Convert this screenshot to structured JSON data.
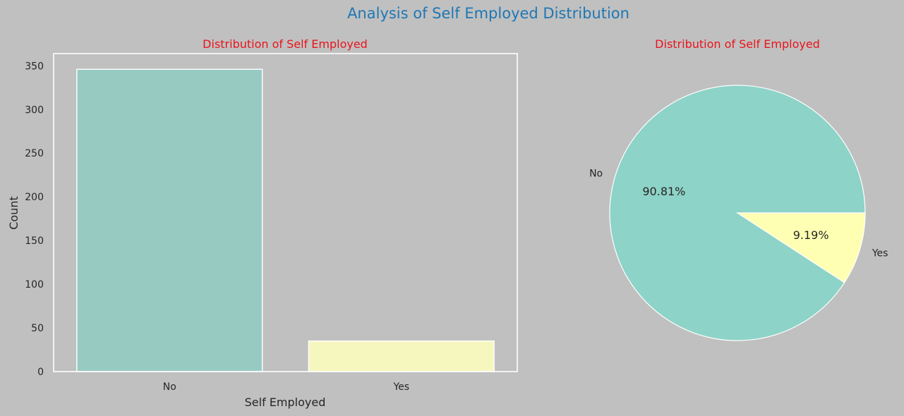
{
  "suptitle": "Analysis of Self Employed Distribution",
  "colors": {
    "background": "#c0c0c0",
    "suptitle": "#1f77b4",
    "subtitle": "#e8141b",
    "text": "#262626",
    "frame": "#ffffff",
    "series": [
      "#8dd3c7",
      "#ffffb3"
    ]
  },
  "chart_data": [
    {
      "type": "bar",
      "title": "Distribution of Self Employed",
      "xlabel": "Self Employed",
      "ylabel": "Count",
      "categories": [
        "No",
        "Yes"
      ],
      "values": [
        346,
        35
      ],
      "ylim": [
        0,
        364
      ],
      "yticks": [
        0,
        50,
        100,
        150,
        200,
        250,
        300,
        350
      ],
      "grid": false
    },
    {
      "type": "pie",
      "title": "Distribution of Self Employed",
      "labels": [
        "No",
        "Yes"
      ],
      "values": [
        90.81,
        9.19
      ],
      "autopct": [
        "90.81%",
        "9.19%"
      ]
    }
  ]
}
